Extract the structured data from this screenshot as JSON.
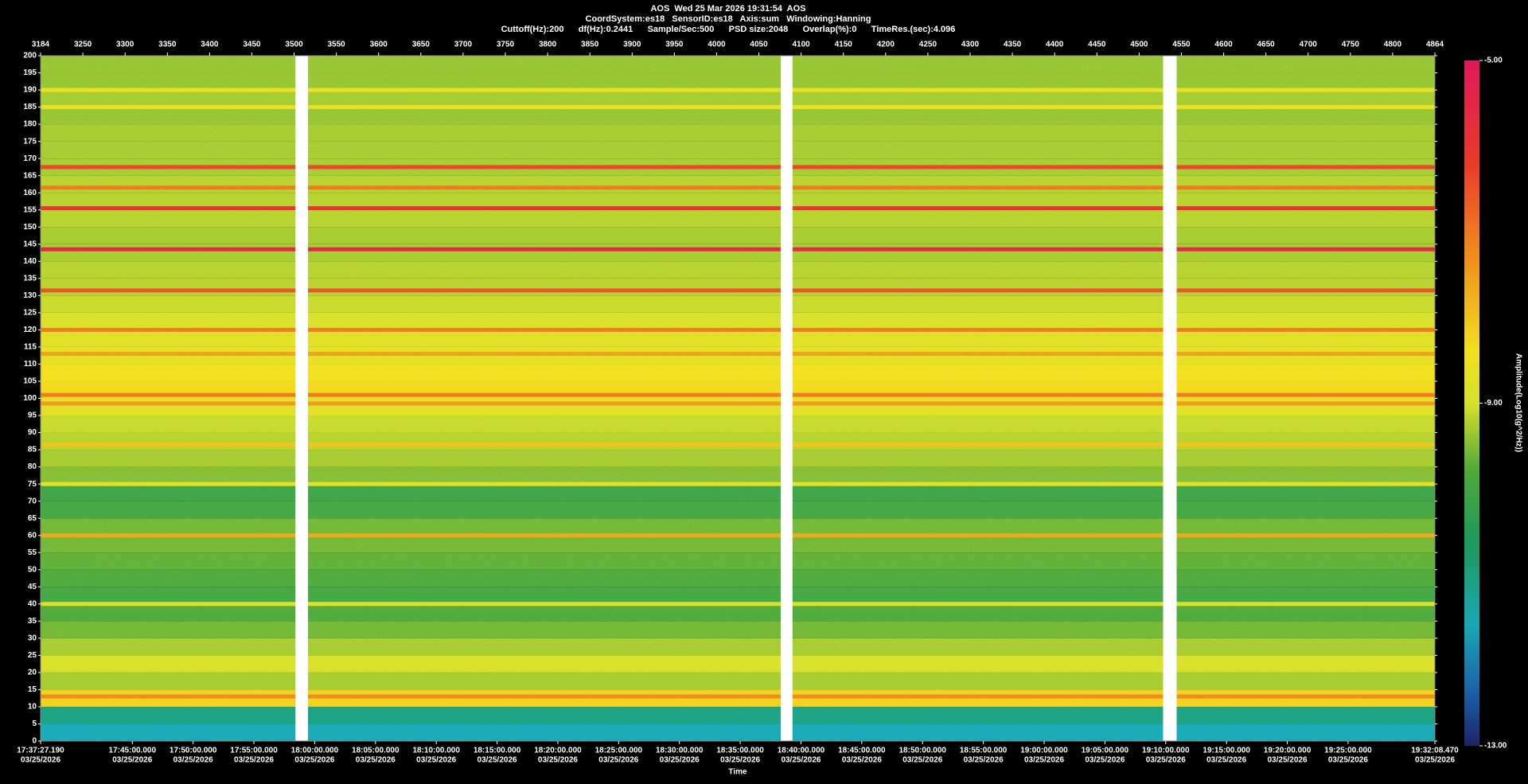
{
  "chart_data": {
    "type": "spectrogram",
    "title_lines": [
      "AOS  Wed 25 Mar 2026 19:31:54  AOS",
      "CoordSystem:es18   SensorID:es18   Axis:sum   Windowing:Hanning",
      "Cuttoff(Hz):200      df(Hz):0.2441      Sample/Sec:500      PSD size:2048      Overlap(%):0      TimeRes.(sec):4.096"
    ],
    "x_label": "Time",
    "colorbar_label": "Amplitude(Log10(g^2/Hz))",
    "top_ticks": [
      3184,
      3250,
      3300,
      3350,
      3400,
      3450,
      3500,
      3550,
      3600,
      3650,
      3700,
      3750,
      3800,
      3850,
      3900,
      3950,
      4000,
      4050,
      4100,
      4150,
      4200,
      4250,
      4300,
      4350,
      4400,
      4450,
      4500,
      4550,
      4600,
      4650,
      4700,
      4750,
      4800,
      4864
    ],
    "time_lim": [
      "17:37:27.190",
      "19:32:08.470"
    ],
    "time_ticks": [
      "17:37:27.190",
      "17:45:00.000",
      "17:50:00.000",
      "17:55:00.000",
      "18:00:00.000",
      "18:05:00.000",
      "18:10:00.000",
      "18:15:00.000",
      "18:20:00.000",
      "18:25:00.000",
      "18:30:00.000",
      "18:35:00.000",
      "18:40:00.000",
      "18:45:00.000",
      "18:50:00.000",
      "18:55:00.000",
      "19:00:00.000",
      "19:05:00.000",
      "19:10:00.000",
      "19:15:00.000",
      "19:20:00.000",
      "19:25:00.000",
      "19:32:08.470"
    ],
    "time_dates": [
      "03/25/2026",
      "03/25/2026",
      "03/25/2026",
      "03/25/2026",
      "03/25/2026",
      "03/25/2026",
      "03/25/2026",
      "03/25/2026",
      "03/25/2026",
      "03/25/2026",
      "03/25/2026",
      "03/25/2026",
      "03/25/2026",
      "03/25/2026",
      "03/25/2026",
      "03/25/2026",
      "03/25/2026",
      "03/25/2026",
      "03/25/2026",
      "03/25/2026",
      "03/25/2026",
      "03/25/2026",
      "03/25/2026"
    ],
    "ylim": [
      0,
      200
    ],
    "yticks": [
      0,
      5,
      10,
      15,
      20,
      25,
      30,
      35,
      40,
      45,
      50,
      55,
      60,
      65,
      70,
      75,
      80,
      85,
      90,
      95,
      100,
      105,
      110,
      115,
      120,
      125,
      130,
      135,
      140,
      145,
      150,
      155,
      160,
      165,
      170,
      175,
      180,
      185,
      190,
      195,
      200
    ],
    "freq_bins": [
      0,
      5,
      10,
      15,
      20,
      25,
      30,
      35,
      40,
      45,
      50,
      55,
      60,
      65,
      70,
      75,
      80,
      85,
      90,
      95,
      100,
      105,
      110,
      115,
      120,
      125,
      130,
      135,
      140,
      145,
      150,
      155,
      160,
      165,
      170,
      175,
      180,
      185,
      190,
      195,
      200
    ],
    "background": [
      -11.6,
      -11.0,
      -8.2,
      -9.3,
      -9.0,
      -9.3,
      -9.6,
      -9.8,
      -10.0,
      -9.8,
      -9.7,
      -9.6,
      -9.6,
      -10.0,
      -10.1,
      -9.5,
      -9.3,
      -9.2,
      -9.1,
      -8.8,
      -8.3,
      -8.4,
      -8.7,
      -8.8,
      -9.0,
      -9.1,
      -9.2,
      -9.2,
      -9.3,
      -9.3,
      -9.2,
      -9.2,
      -9.2,
      -9.3,
      -9.3,
      -9.3,
      -9.4,
      -9.3,
      -9.4,
      -9.4
    ],
    "tones": {
      "freqs": [
        167.5,
        161.5,
        155.5,
        143.5,
        131.5,
        120,
        113,
        101,
        98.5,
        86.5,
        60,
        13,
        185,
        190,
        75,
        40
      ],
      "values": [
        -6.3,
        -7.0,
        -6.0,
        -5.5,
        -6.5,
        -7.0,
        -7.5,
        -7.0,
        -7.4,
        -8.0,
        -7.6,
        -7.2,
        -8.6,
        -8.6,
        -8.8,
        -8.9
      ]
    },
    "gaps": [
      [
        "17:58:25",
        "17:59:27"
      ],
      [
        "18:38:20",
        "18:39:18"
      ],
      [
        "19:09:47",
        "19:10:54"
      ]
    ],
    "gap_color": "#ffffff",
    "colorbar_lim": [
      -13,
      -5
    ],
    "colorbar_ticks": [
      {
        "value": -5,
        "label": "-5.00"
      },
      {
        "value": -9,
        "label": "-9.00"
      },
      {
        "value": -13,
        "label": "-13.00"
      }
    ],
    "colormap": [
      {
        "value": -13,
        "color": "#1c2466"
      },
      {
        "value": -12.4,
        "color": "#1a5ea8"
      },
      {
        "value": -11.6,
        "color": "#18a7b4"
      },
      {
        "value": -10.6,
        "color": "#1e9a5a"
      },
      {
        "value": -9.8,
        "color": "#4ea83a"
      },
      {
        "value": -9.0,
        "color": "#d8e02a"
      },
      {
        "value": -8.4,
        "color": "#f2e01e"
      },
      {
        "value": -7.4,
        "color": "#f0961c"
      },
      {
        "value": -6.2,
        "color": "#ea3a2a"
      },
      {
        "value": -5,
        "color": "#e0185a"
      }
    ],
    "background_color": "#000000",
    "text_color": "#ffffff"
  }
}
